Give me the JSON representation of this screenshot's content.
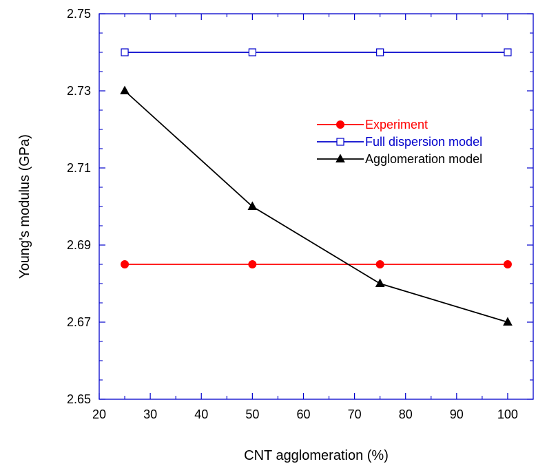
{
  "chart_data": {
    "type": "line",
    "title": "",
    "xlabel": "CNT agglomeration (%)",
    "ylabel": "Young's modulus (GPa)",
    "xlim": [
      20,
      105
    ],
    "ylim": [
      2.65,
      2.75
    ],
    "x_ticks": [
      "20",
      "30",
      "40",
      "50",
      "60",
      "70",
      "80",
      "90",
      "100"
    ],
    "y_ticks": [
      "2.65",
      "2.67",
      "2.69",
      "2.71",
      "2.73",
      "2.75"
    ],
    "grid": false,
    "legend_position": "right",
    "series": [
      {
        "name": "Experiment",
        "color": "#ff0000",
        "marker": "filled-circle",
        "x": [
          25,
          50,
          75,
          100
        ],
        "y": [
          2.685,
          2.685,
          2.685,
          2.685
        ]
      },
      {
        "name": "Full dispersion model",
        "color": "#0000cc",
        "marker": "open-square",
        "x": [
          25,
          50,
          75,
          100
        ],
        "y": [
          2.74,
          2.74,
          2.74,
          2.74
        ]
      },
      {
        "name": "Agglomeration model",
        "color": "#000000",
        "marker": "filled-triangle",
        "x": [
          25,
          50,
          75,
          100
        ],
        "y": [
          2.73,
          2.7,
          2.68,
          2.67
        ]
      }
    ]
  }
}
